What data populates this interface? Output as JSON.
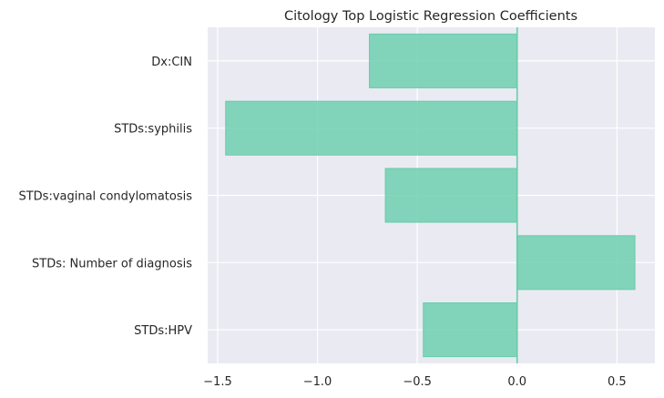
{
  "chart_data": {
    "type": "bar",
    "orientation": "horizontal",
    "title": "Citology Top Logistic Regression Coefficients",
    "xlabel": "",
    "ylabel": "",
    "categories": [
      "Dx:CIN",
      "STDs:syphilis",
      "STDs:vaginal condylomatosis",
      "STDs: Number of diagnosis",
      "STDs:HPV"
    ],
    "values": [
      -0.74,
      -1.46,
      -0.66,
      0.59,
      -0.47
    ],
    "xlim": [
      -1.55,
      0.69
    ],
    "xticks": [
      -1.5,
      -1.0,
      -0.5,
      0.0,
      0.5
    ],
    "xtick_labels": [
      "−1.5",
      "−1.0",
      "−0.5",
      "0.0",
      "0.5"
    ],
    "grid": true,
    "colors": {
      "bar_fill": "#66cdaa",
      "bar_fill_opacity": 0.8,
      "zero_line": "#66cdaa",
      "plot_background": "#eaeaf2",
      "grid": "#ffffff",
      "text": "#262626"
    }
  }
}
